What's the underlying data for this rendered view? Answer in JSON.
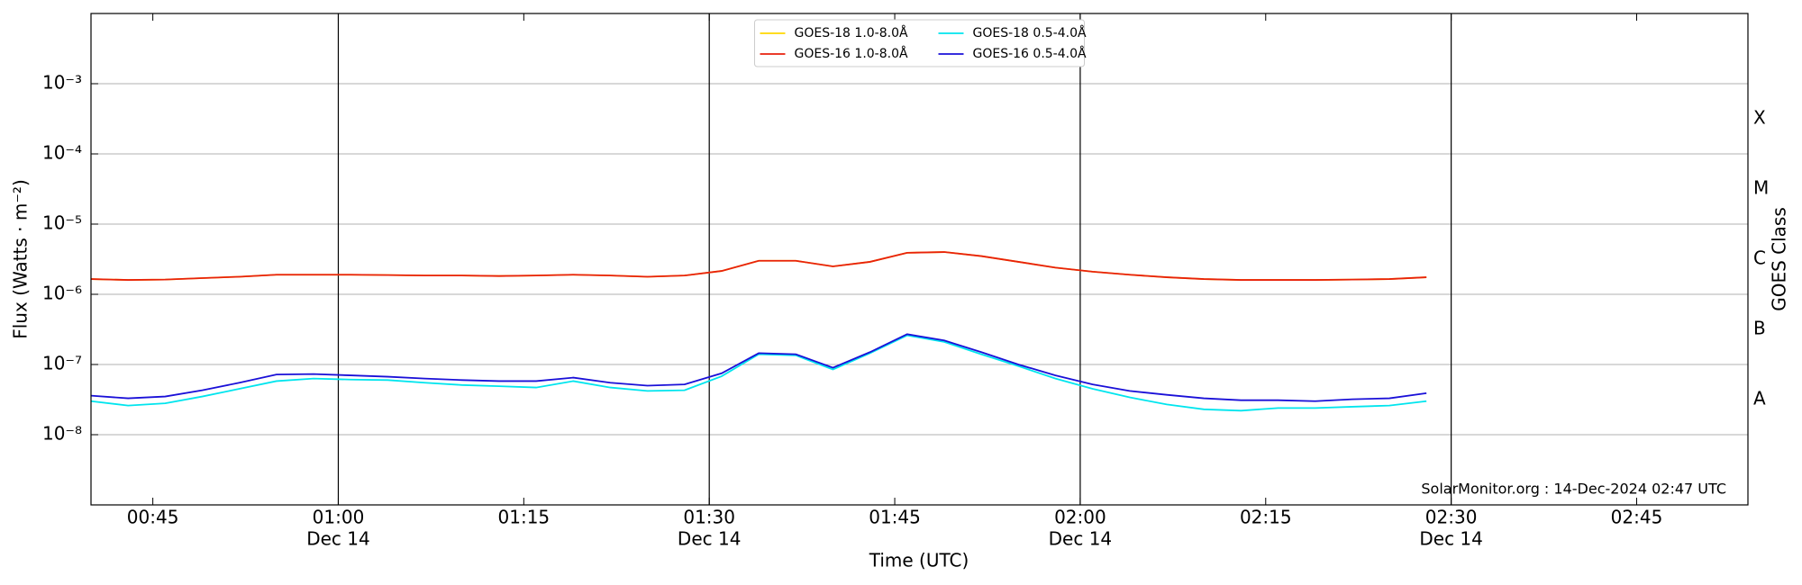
{
  "chart_data": {
    "type": "line",
    "y_label": "Flux (Watts · m⁻²)",
    "x_label": "Time (UTC)",
    "y2_label": "GOES Class",
    "annotation": "SolarMonitor.org : 14-Dec-2024 02:47 UTC",
    "log_scale": true,
    "grid": true,
    "legend_loc": "upper center",
    "legend_ncol": 2,
    "xlim": [
      "00:40",
      "02:54"
    ],
    "xticks": [
      "00:45",
      {
        "value": "01:00",
        "label": [
          "01:00",
          "Dec 14"
        ]
      },
      "01:15",
      {
        "value": "01:30",
        "label": [
          "01:30",
          "Dec 14"
        ]
      },
      "01:45",
      {
        "value": "02:00",
        "label": [
          "02:00",
          "Dec 14"
        ]
      },
      "02:15",
      {
        "value": "02:30",
        "label": [
          "02:30",
          "Dec 14"
        ]
      },
      "02:45"
    ],
    "vlines": [
      "01:00",
      "01:30",
      "02:00",
      "02:30"
    ],
    "ylim": [
      1e-09,
      0.01
    ],
    "yticks": [
      {
        "value": 0.001,
        "label": "10⁻³"
      },
      {
        "value": 0.0001,
        "label": "10⁻⁴"
      },
      {
        "value": 1e-05,
        "label": "10⁻⁵"
      },
      {
        "value": 1e-06,
        "label": "10⁻⁶"
      },
      {
        "value": 1e-07,
        "label": "10⁻⁷"
      },
      {
        "value": 1e-08,
        "label": "10⁻⁸"
      }
    ],
    "y2lim": [
      1e-09,
      0.01
    ],
    "y2ticks": [
      {
        "value": 3.16e-08,
        "label": "A"
      },
      {
        "value": 3.16e-07,
        "label": "B"
      },
      {
        "value": 3.16e-06,
        "label": "C"
      },
      {
        "value": 3.16e-05,
        "label": "M"
      },
      {
        "value": 0.000316,
        "label": "X"
      }
    ],
    "x": [
      "00:40",
      "00:43",
      "00:46",
      "00:49",
      "00:52",
      "00:55",
      "00:58",
      "01:01",
      "01:04",
      "01:07",
      "01:10",
      "01:13",
      "01:16",
      "01:19",
      "01:22",
      "01:25",
      "01:28",
      "01:31",
      "01:34",
      "01:37",
      "01:40",
      "01:43",
      "01:46",
      "01:49",
      "01:52",
      "01:55",
      "01:58",
      "02:01",
      "02:04",
      "02:07",
      "02:10",
      "02:13",
      "02:16",
      "02:19",
      "02:22",
      "02:25",
      "02:28"
    ],
    "series": [
      {
        "name": "GOES-18 1.0-8.0Å",
        "color": "#ffd700",
        "values": [
          1.65e-06,
          1.6e-06,
          1.62e-06,
          1.7e-06,
          1.78e-06,
          1.9e-06,
          1.9e-06,
          1.9e-06,
          1.88e-06,
          1.85e-06,
          1.85e-06,
          1.82e-06,
          1.85e-06,
          1.9e-06,
          1.85e-06,
          1.78e-06,
          1.85e-06,
          2.15e-06,
          3e-06,
          3e-06,
          2.5e-06,
          2.9e-06,
          3.9e-06,
          4e-06,
          3.5e-06,
          2.9e-06,
          2.4e-06,
          2.1e-06,
          1.9e-06,
          1.75e-06,
          1.65e-06,
          1.6e-06,
          1.6e-06,
          1.6e-06,
          1.62e-06,
          1.65e-06,
          1.75e-06
        ]
      },
      {
        "name": "GOES-16 1.0-8.0Å",
        "color": "#e8210c",
        "values": [
          1.65e-06,
          1.6e-06,
          1.62e-06,
          1.7e-06,
          1.78e-06,
          1.9e-06,
          1.9e-06,
          1.9e-06,
          1.88e-06,
          1.85e-06,
          1.85e-06,
          1.82e-06,
          1.85e-06,
          1.9e-06,
          1.85e-06,
          1.78e-06,
          1.85e-06,
          2.15e-06,
          3e-06,
          3e-06,
          2.5e-06,
          2.9e-06,
          3.9e-06,
          4e-06,
          3.5e-06,
          2.9e-06,
          2.4e-06,
          2.1e-06,
          1.9e-06,
          1.75e-06,
          1.65e-06,
          1.6e-06,
          1.6e-06,
          1.6e-06,
          1.62e-06,
          1.65e-06,
          1.75e-06
        ]
      },
      {
        "name": "GOES-18 0.5-4.0Å",
        "color": "#00e5ee",
        "values": [
          3e-08,
          2.6e-08,
          2.8e-08,
          3.5e-08,
          4.5e-08,
          5.8e-08,
          6.3e-08,
          6.1e-08,
          6e-08,
          5.5e-08,
          5.1e-08,
          4.9e-08,
          4.7e-08,
          5.8e-08,
          4.7e-08,
          4.2e-08,
          4.3e-08,
          6.8e-08,
          1.4e-07,
          1.35e-07,
          8.5e-08,
          1.45e-07,
          2.6e-07,
          2.1e-07,
          1.4e-07,
          9.5e-08,
          6.3e-08,
          4.5e-08,
          3.4e-08,
          2.7e-08,
          2.3e-08,
          2.2e-08,
          2.4e-08,
          2.4e-08,
          2.5e-08,
          2.6e-08,
          3e-08
        ]
      },
      {
        "name": "GOES-16 0.5-4.0Å",
        "color": "#1a10d8",
        "values": [
          3.6e-08,
          3.3e-08,
          3.5e-08,
          4.3e-08,
          5.5e-08,
          7.2e-08,
          7.3e-08,
          7e-08,
          6.7e-08,
          6.3e-08,
          6e-08,
          5.8e-08,
          5.8e-08,
          6.5e-08,
          5.5e-08,
          5e-08,
          5.2e-08,
          7.5e-08,
          1.45e-07,
          1.4e-07,
          9e-08,
          1.5e-07,
          2.7e-07,
          2.2e-07,
          1.5e-07,
          1e-07,
          7e-08,
          5.2e-08,
          4.2e-08,
          3.7e-08,
          3.3e-08,
          3.1e-08,
          3.1e-08,
          3e-08,
          3.2e-08,
          3.3e-08,
          3.9e-08
        ]
      }
    ]
  }
}
